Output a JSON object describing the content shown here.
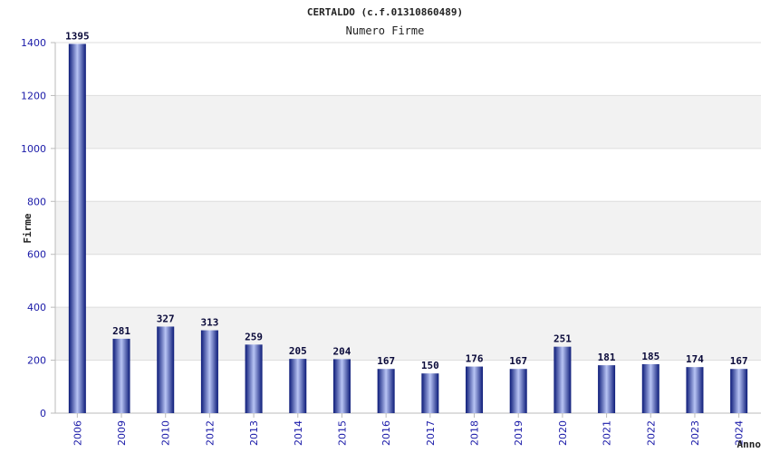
{
  "chart_data": {
    "type": "bar",
    "title": "CERTALDO (c.f.01310860489)",
    "subtitle": "Numero Firme",
    "xlabel": "Anno",
    "ylabel": "Firme",
    "categories": [
      "2006",
      "2009",
      "2010",
      "2012",
      "2013",
      "2014",
      "2015",
      "2016",
      "2017",
      "2018",
      "2019",
      "2020",
      "2021",
      "2022",
      "2023",
      "2024"
    ],
    "values": [
      1395,
      281,
      327,
      313,
      259,
      205,
      204,
      167,
      150,
      176,
      167,
      251,
      181,
      185,
      174,
      167
    ],
    "ylim": [
      0,
      1400
    ],
    "yticks": [
      0,
      200,
      400,
      600,
      800,
      1000,
      1200,
      1400
    ],
    "grid": true,
    "colors": {
      "bar_dark": "#0b1a78",
      "bar_light": "#b8c4f4",
      "band": "#f2f2f2",
      "tick": "#1a1aa8"
    }
  }
}
